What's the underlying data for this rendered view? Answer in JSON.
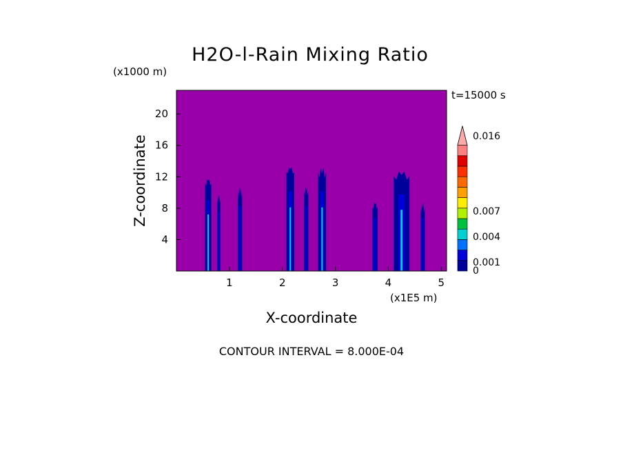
{
  "chart_data": {
    "type": "heatmap",
    "title": "H2O-l-Rain Mixing Ratio",
    "xlabel": "X-coordinate",
    "ylabel": "Z-coordinate",
    "x_unit": "(x1E5 m)",
    "y_unit": "(x1000 m)",
    "time_label": "t=15000 s",
    "xlim": [
      0,
      5.1
    ],
    "ylim": [
      0,
      23
    ],
    "x_ticks": [
      1,
      2,
      3,
      4,
      5
    ],
    "y_ticks": [
      4,
      8,
      12,
      16,
      20
    ],
    "background_color": "#9900aa",
    "colorbar": {
      "tick_labels": [
        "0.016",
        "0.007",
        "0.004",
        "0.001",
        "0"
      ],
      "colors": [
        "#00009a",
        "#0000d8",
        "#0070ff",
        "#00d0d0",
        "#00c040",
        "#b0f000",
        "#ffee00",
        "#ffa000",
        "#ff6a00",
        "#ff3000",
        "#e00000",
        "#ff8080",
        "#ffaaaa"
      ]
    },
    "cells": [
      {
        "x": 0.6,
        "width": 0.12,
        "top": 12,
        "peak": 0.003
      },
      {
        "x": 0.8,
        "width": 0.06,
        "top": 10,
        "peak": 0.001
      },
      {
        "x": 1.2,
        "width": 0.08,
        "top": 11,
        "peak": 0.001
      },
      {
        "x": 2.15,
        "width": 0.15,
        "top": 13.5,
        "peak": 0.004
      },
      {
        "x": 2.45,
        "width": 0.08,
        "top": 11,
        "peak": 0.001
      },
      {
        "x": 2.75,
        "width": 0.15,
        "top": 13.5,
        "peak": 0.004
      },
      {
        "x": 3.75,
        "width": 0.1,
        "top": 9,
        "peak": 0.001
      },
      {
        "x": 4.25,
        "width": 0.3,
        "top": 13,
        "peak": 0.003
      },
      {
        "x": 4.65,
        "width": 0.08,
        "top": 9,
        "peak": 0.001
      }
    ],
    "annotation": "CONTOUR INTERVAL = 8.000E-04"
  }
}
